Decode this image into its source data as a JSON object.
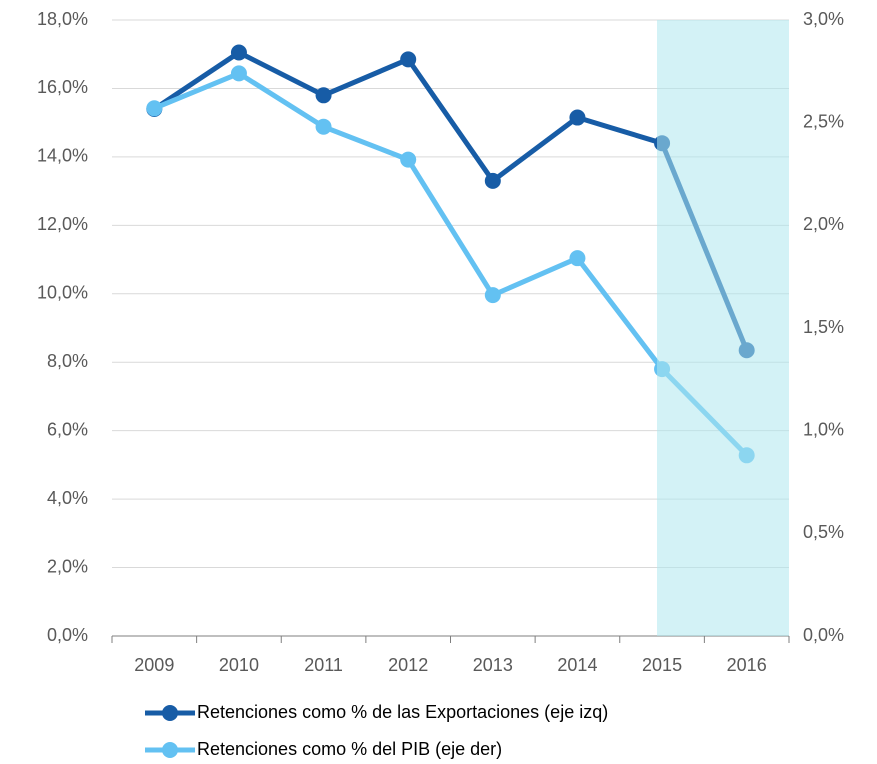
{
  "chart_data": {
    "type": "line",
    "categories": [
      "2009",
      "2010",
      "2011",
      "2012",
      "2013",
      "2014",
      "2015",
      "2016"
    ],
    "series": [
      {
        "name": "Retenciones como % de las Exportaciones (eje izq)",
        "color": "#175ca6",
        "values": [
          15.4,
          17.05,
          15.8,
          16.85,
          13.3,
          15.15,
          14.4,
          8.35
        ]
      },
      {
        "name": "Retenciones como % del PIB (eje der)",
        "color": "#63c1f2",
        "axis": "y2",
        "values": [
          2.57,
          2.74,
          2.48,
          2.32,
          1.66,
          1.84,
          1.3,
          0.88
        ]
      }
    ],
    "ylim": [
      0,
      18
    ],
    "yticks": [
      {
        "value": 0,
        "label": "0,0%"
      },
      {
        "value": 2,
        "label": "2,0%"
      },
      {
        "value": 4,
        "label": "4,0%"
      },
      {
        "value": 6,
        "label": "6,0%"
      },
      {
        "value": 8,
        "label": "8,0%"
      },
      {
        "value": 10,
        "label": "10,0%"
      },
      {
        "value": 12,
        "label": "12,0%"
      },
      {
        "value": 14,
        "label": "14,0%"
      },
      {
        "value": 16,
        "label": "16,0%"
      },
      {
        "value": 18,
        "label": "18,0%"
      }
    ],
    "y2lim": [
      0,
      3
    ],
    "y2ticks": [
      {
        "value": 0,
        "label": "0,0%"
      },
      {
        "value": 0.5,
        "label": "0,5%"
      },
      {
        "value": 1,
        "label": "1,0%"
      },
      {
        "value": 1.5,
        "label": "1,5%"
      },
      {
        "value": 2,
        "label": "2,0%"
      },
      {
        "value": 2.5,
        "label": "2,5%"
      },
      {
        "value": 3,
        "label": "3,0%"
      }
    ],
    "grid": true
  }
}
